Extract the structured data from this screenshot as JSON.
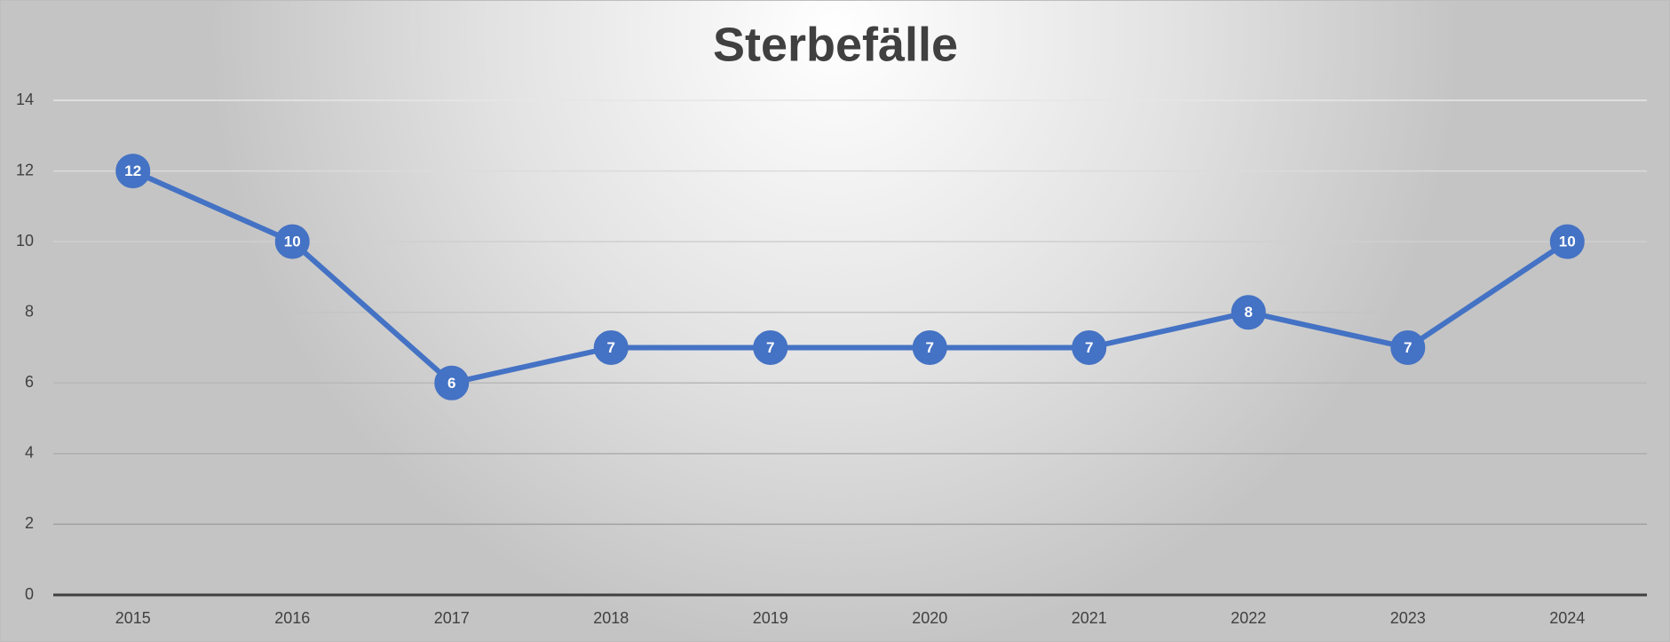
{
  "chart_data": {
    "type": "line",
    "title": "Sterbefälle",
    "categories": [
      "2015",
      "2016",
      "2017",
      "2018",
      "2019",
      "2020",
      "2021",
      "2022",
      "2023",
      "2024"
    ],
    "series": [
      {
        "name": "Sterbefälle",
        "color": "#4472c4",
        "values": [
          12,
          10,
          6,
          7,
          7,
          7,
          7,
          8,
          7,
          10
        ]
      }
    ],
    "ylim": [
      0,
      14
    ],
    "yticks": [
      0,
      2,
      4,
      6,
      8,
      10,
      12,
      14
    ],
    "grid": true,
    "data_labels": true
  }
}
